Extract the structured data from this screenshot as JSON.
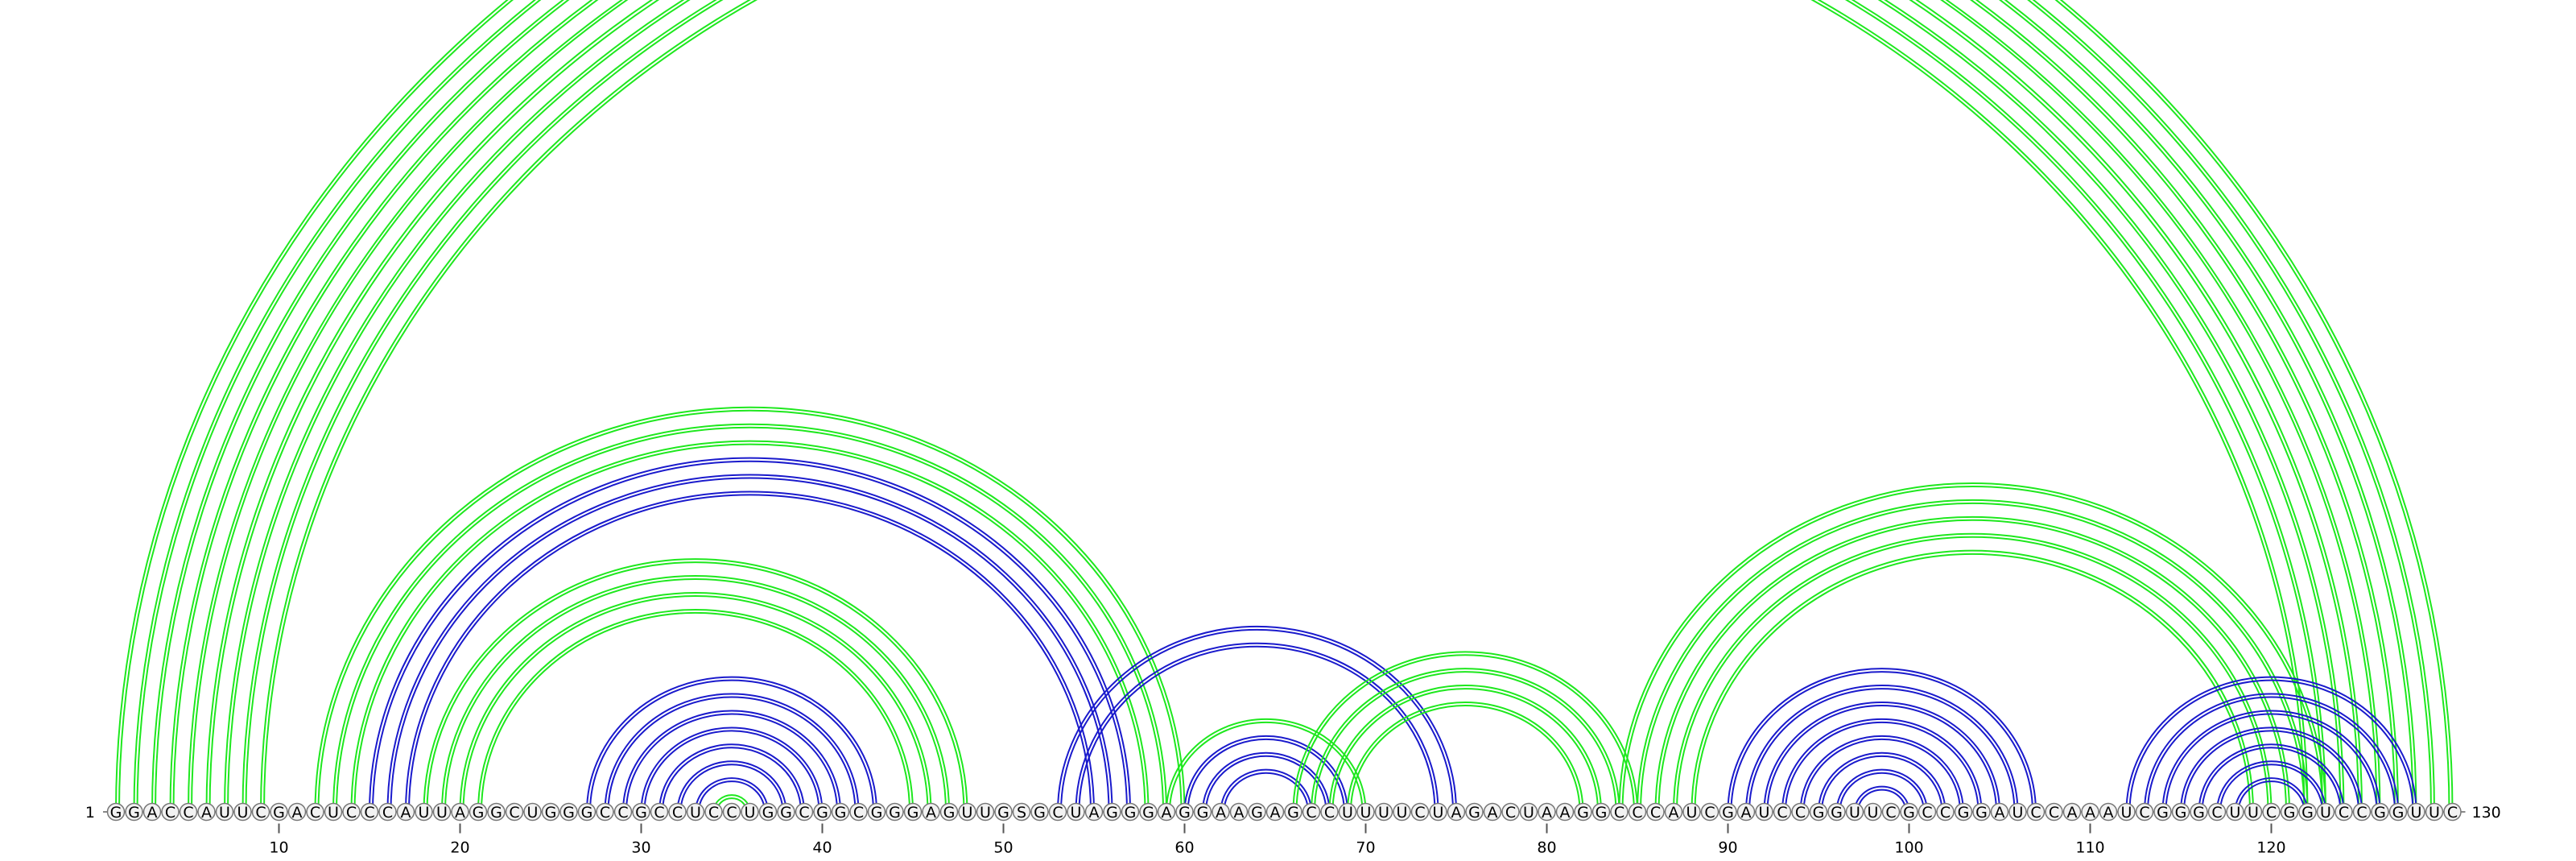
{
  "diagram": {
    "type": "rna-arc-diagram",
    "sequence": "GGACCAUUCGACUCCCAUUAGGCUGGGCCGCCUCCUGGCGGCGGGAGUUGSGCUAGGGAGGAAGAGCCUUUUCUAGACUAAGGCCCAUCGAUCCGGUUCGCCGGAUCCAAAUCGGGCUUCGGUCCGGUUC",
    "start_label": "1",
    "end_label": "130",
    "ticks": [
      10,
      20,
      30,
      40,
      50,
      60,
      70,
      80,
      90,
      100,
      110,
      120
    ],
    "colors": {
      "green": "#1ee81e",
      "blue": "#1a1acc",
      "backbone": "#888888",
      "circle_stroke": "#777777",
      "circle_fill": "#f2f2f2"
    },
    "arcs": [
      {
        "color": "green",
        "pairs": [
          [
            1,
            130
          ],
          [
            2,
            129
          ],
          [
            3,
            128
          ],
          [
            4,
            127
          ],
          [
            5,
            126
          ],
          [
            6,
            125
          ],
          [
            7,
            124
          ],
          [
            8,
            123
          ],
          [
            9,
            122
          ]
        ]
      },
      {
        "color": "green",
        "pairs": [
          [
            12,
            60
          ],
          [
            13,
            59
          ],
          [
            14,
            58
          ]
        ]
      },
      {
        "color": "blue",
        "pairs": [
          [
            15,
            57
          ],
          [
            16,
            56
          ],
          [
            17,
            55
          ]
        ]
      },
      {
        "color": "green",
        "pairs": [
          [
            18,
            48
          ],
          [
            19,
            47
          ],
          [
            20,
            46
          ],
          [
            21,
            45
          ]
        ]
      },
      {
        "color": "blue",
        "pairs": [
          [
            27,
            43
          ],
          [
            28,
            42
          ],
          [
            29,
            41
          ],
          [
            30,
            40
          ],
          [
            31,
            39
          ],
          [
            32,
            38
          ],
          [
            33,
            37
          ]
        ]
      },
      {
        "color": "green",
        "pairs": [
          [
            34,
            36
          ]
        ]
      },
      {
        "color": "blue",
        "pairs": [
          [
            53,
            75
          ],
          [
            54,
            74
          ]
        ]
      },
      {
        "color": "green",
        "pairs": [
          [
            59,
            70
          ]
        ]
      },
      {
        "color": "blue",
        "pairs": [
          [
            60,
            69
          ],
          [
            61,
            68
          ],
          [
            62,
            67
          ]
        ]
      },
      {
        "color": "green",
        "pairs": [
          [
            66,
            85
          ],
          [
            67,
            84
          ],
          [
            68,
            83
          ],
          [
            69,
            82
          ]
        ]
      },
      {
        "color": "green",
        "pairs": [
          [
            84,
            123
          ],
          [
            85,
            122
          ],
          [
            86,
            121
          ],
          [
            87,
            120
          ],
          [
            88,
            119
          ]
        ]
      },
      {
        "color": "blue",
        "pairs": [
          [
            90,
            107
          ],
          [
            91,
            106
          ],
          [
            92,
            105
          ],
          [
            93,
            104
          ],
          [
            94,
            103
          ],
          [
            95,
            102
          ],
          [
            96,
            101
          ],
          [
            97,
            100
          ]
        ]
      },
      {
        "color": "blue",
        "pairs": [
          [
            112,
            128
          ],
          [
            113,
            127
          ],
          [
            114,
            126
          ],
          [
            115,
            125
          ],
          [
            116,
            124
          ],
          [
            117,
            123
          ],
          [
            118,
            122
          ]
        ]
      }
    ]
  }
}
